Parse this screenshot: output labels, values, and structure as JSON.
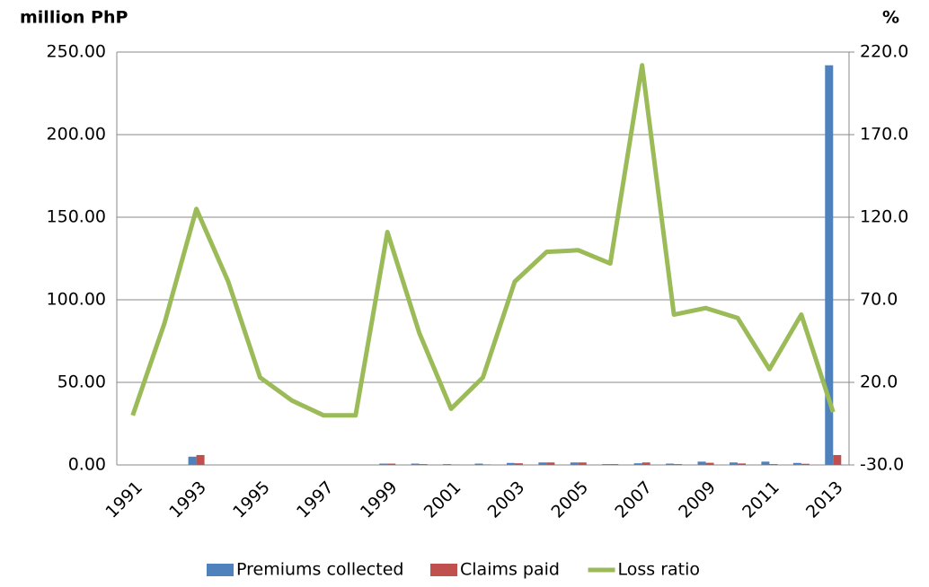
{
  "chart_data": {
    "type": "bar",
    "y_axis_title": "million PhP",
    "y2_axis_title": "%",
    "categories": [
      "1991",
      null,
      "1993",
      null,
      "1995",
      null,
      "1997",
      null,
      "1999",
      null,
      "2001",
      null,
      "2003",
      null,
      "2005",
      null,
      "2007",
      null,
      "2009",
      null,
      "2011",
      null,
      "2013"
    ],
    "series": [
      {
        "name": "Premiums collected",
        "color": "#4f81bd",
        "type": "bar",
        "values": [
          0,
          0,
          5,
          0,
          0,
          0,
          0,
          0,
          0.8,
          0.8,
          0.5,
          0.8,
          1.2,
          1.5,
          1.5,
          0.5,
          1.0,
          0.8,
          2.0,
          1.5,
          2.0,
          1.2,
          242
        ]
      },
      {
        "name": "Claims paid",
        "color": "#c0504d",
        "type": "bar",
        "values": [
          0,
          0,
          6,
          0,
          0,
          0,
          0,
          0,
          0.8,
          0.5,
          0.2,
          0.3,
          1.0,
          1.5,
          1.5,
          0.5,
          1.5,
          0.5,
          1.3,
          0.9,
          0.5,
          0.7,
          6
        ]
      },
      {
        "name": "Loss ratio",
        "color": "#9bbb59",
        "type": "line",
        "axis": "y2",
        "values": [
          0,
          56,
          125,
          81,
          23,
          9,
          0,
          0,
          111,
          50,
          4,
          23,
          81,
          99,
          100,
          92,
          212,
          61,
          65,
          59,
          28,
          61,
          2
        ]
      }
    ],
    "ylim": [
      0,
      250
    ],
    "yticks": [
      {
        "value": 0,
        "label": "0.00"
      },
      {
        "value": 50,
        "label": "50.00"
      },
      {
        "value": 100,
        "label": "100.00"
      },
      {
        "value": 150,
        "label": "150.00"
      },
      {
        "value": 200,
        "label": "200.00"
      },
      {
        "value": 250,
        "label": "250.00"
      }
    ],
    "y2lim": [
      -30,
      220
    ],
    "y2ticks": [
      {
        "value": -30,
        "label": "-30.0"
      },
      {
        "value": 20,
        "label": "20.0"
      },
      {
        "value": 70,
        "label": "70.0"
      },
      {
        "value": 120,
        "label": "120.0"
      },
      {
        "value": 170,
        "label": "170.0"
      },
      {
        "value": 220,
        "label": "220.0"
      }
    ],
    "grid": true,
    "legend": "bottom"
  }
}
